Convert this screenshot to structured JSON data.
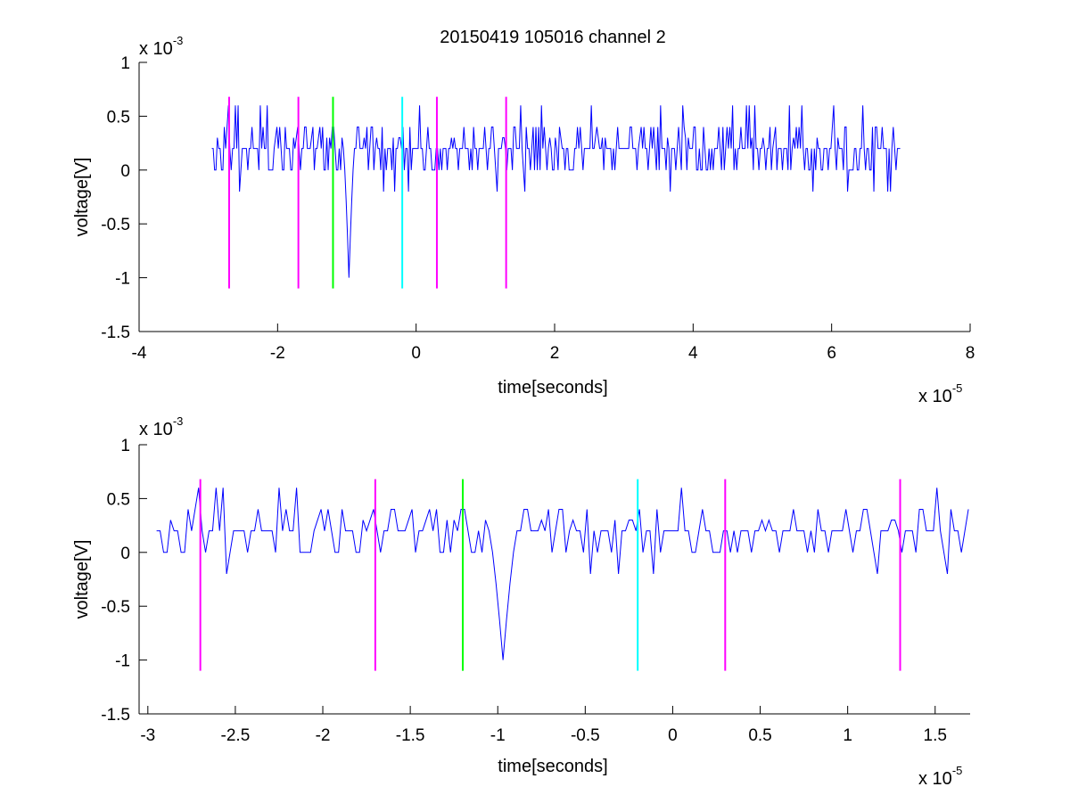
{
  "title": "20150419 105016 channel 2",
  "colors": {
    "signal": "#0000ff",
    "marker_magenta": "#ff00ff",
    "marker_green": "#00ff00",
    "marker_cyan": "#00ffff",
    "axes": "#000000",
    "background": "#ffffff"
  },
  "chart_data": [
    {
      "type": "line",
      "title": "20150419 105016 channel 2",
      "xlabel": "time[seconds]",
      "ylabel": "voltage[V]",
      "x_multiplier_base": "x 10",
      "x_multiplier_exp": "-5",
      "y_multiplier_base": "x 10",
      "y_multiplier_exp": "-3",
      "xlim": [
        -4,
        8
      ],
      "ylim": [
        -1.5,
        1
      ],
      "xticks": [
        "-4",
        "-2",
        "0",
        "2",
        "4",
        "6",
        "8"
      ],
      "yticks": [
        "-1.5",
        "-1",
        "-0.5",
        "0",
        "0.5",
        "1"
      ],
      "grid": false,
      "legend": "none",
      "series": [
        {
          "x_start": -2.95,
          "x_end": 7.0,
          "step_values": [
            0,
            0.2
          ],
          "baseline": 0.2,
          "noise_peak_max": 0.6,
          "noise_dip_min": -0.2,
          "spike_x": -0.97,
          "spike_min": -1.0
        }
      ],
      "markers": [
        {
          "x": -2.7,
          "y_bottom": -1.1,
          "y_top": 0.68,
          "color": "magenta"
        },
        {
          "x": -1.7,
          "y_bottom": -1.1,
          "y_top": 0.68,
          "color": "magenta"
        },
        {
          "x": -1.2,
          "y_bottom": -1.1,
          "y_top": 0.68,
          "color": "green"
        },
        {
          "x": -0.2,
          "y_bottom": -1.1,
          "y_top": 0.68,
          "color": "cyan"
        },
        {
          "x": 0.3,
          "y_bottom": -1.1,
          "y_top": 0.68,
          "color": "magenta"
        },
        {
          "x": 1.3,
          "y_bottom": -1.1,
          "y_top": 0.68,
          "color": "magenta"
        }
      ]
    },
    {
      "type": "line",
      "title": "",
      "xlabel": "time[seconds]",
      "ylabel": "voltage[V]",
      "x_multiplier_base": "x 10",
      "x_multiplier_exp": "-5",
      "y_multiplier_base": "x 10",
      "y_multiplier_exp": "-3",
      "xlim": [
        -3.05,
        1.7
      ],
      "ylim": [
        -1.5,
        1
      ],
      "xticks": [
        "-3",
        "-2.5",
        "-2",
        "-1.5",
        "-1",
        "-0.5",
        "0",
        "0.5",
        "1",
        "1.5"
      ],
      "yticks": [
        "-1.5",
        "-1",
        "-0.5",
        "0",
        "0.5",
        "1"
      ],
      "grid": false,
      "legend": "none",
      "series": [
        {
          "x_start": -2.95,
          "x_end": 1.7,
          "step_values": [
            0,
            0.2
          ],
          "baseline": 0.2,
          "noise_peak_max": 0.6,
          "noise_dip_min": -0.2,
          "spike_x": -0.97,
          "spike_min": -1.0
        }
      ],
      "markers": [
        {
          "x": -2.7,
          "y_bottom": -1.1,
          "y_top": 0.68,
          "color": "magenta"
        },
        {
          "x": -1.7,
          "y_bottom": -1.1,
          "y_top": 0.68,
          "color": "magenta"
        },
        {
          "x": -1.2,
          "y_bottom": -1.1,
          "y_top": 0.68,
          "color": "green"
        },
        {
          "x": -0.2,
          "y_bottom": -1.1,
          "y_top": 0.68,
          "color": "cyan"
        },
        {
          "x": 0.3,
          "y_bottom": -1.1,
          "y_top": 0.68,
          "color": "magenta"
        },
        {
          "x": 1.3,
          "y_bottom": -1.1,
          "y_top": 0.68,
          "color": "magenta"
        }
      ]
    }
  ]
}
